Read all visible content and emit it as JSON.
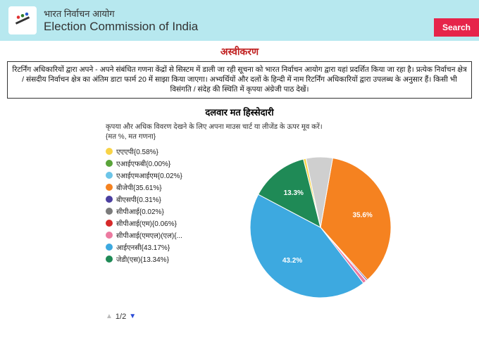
{
  "header": {
    "title_hi": "भारत निर्वाचन आयोग",
    "title_en": "Election Commission of India",
    "search_label": "Search"
  },
  "disclaimer": {
    "heading": "अस्वीकरण",
    "body": "रिटर्निंग अधिकारियों द्वारा अपने - अपने संबंधित गणना केंद्रों से सिस्टम में डाली जा रही सूचना को भारत निर्वाचन आयोग द्वारा यहां प्रदर्शित किया जा रहा है। प्रत्येक निर्वाचन क्षेत्र / संसदीय निर्वाचन क्षेत्र का अंतिम डाटा फार्म 20 में साझा किया जाएगा। अभ्यर्थियों और दलों के हिन्दी में नाम रिटर्निंग अधिकारियों द्वारा उपलब्ध के अनुसार हैं। किसी भी विसंगति / संदेह की स्थिति में कृपया अंग्रेजी पाठ देखें।"
  },
  "chart": {
    "title": "दलवार मत हिस्सेदारी",
    "instructions": "कृपया और अधिक विवरण देखने के लिए अपना माउस चार्ट या लीजेंड के ऊपर मूव करें।",
    "sub_instructions": "{मत %, मत गणना}",
    "type": "pie",
    "background_color": "#ffffff",
    "radius": 100,
    "label_fontsize": 10,
    "legend_fontsize": 10,
    "legend": [
      {
        "name": "एएएपी",
        "pct": "0.58%",
        "color": "#f8d347"
      },
      {
        "name": "एआईएफबी",
        "pct": "0.00%",
        "color": "#5aa43a"
      },
      {
        "name": "एआईएमआईएम",
        "pct": "0.02%",
        "color": "#6cc5e8"
      },
      {
        "name": "बीजेपी",
        "pct": "35.61%",
        "color": "#f58220"
      },
      {
        "name": "बीएसपी",
        "pct": "0.31%",
        "color": "#4b3fa0"
      },
      {
        "name": "सीपीआई",
        "pct": "0.02%",
        "color": "#7b7b7b"
      },
      {
        "name": "सीपीआई(एम)",
        "pct": "0.06%",
        "color": "#d62a2a"
      },
      {
        "name": "सीपीआई(एमएल)(एल)",
        "pct": "",
        "color": "#ec7aa0"
      },
      {
        "name": "आईएनसी",
        "pct": "43.17%",
        "color": "#3da9e0"
      },
      {
        "name": "जेडी(एस)",
        "pct": "13.34%",
        "color": "#1f8a56"
      }
    ],
    "slices": [
      {
        "label": "35.6%",
        "value": 35.61,
        "color": "#f58220",
        "show_label": true
      },
      {
        "label": "",
        "value": 0.31,
        "color": "#4b3fa0",
        "show_label": false
      },
      {
        "label": "",
        "value": 0.02,
        "color": "#7b7b7b",
        "show_label": false
      },
      {
        "label": "",
        "value": 0.06,
        "color": "#d62a2a",
        "show_label": false
      },
      {
        "label": "",
        "value": 0.8,
        "color": "#ec7aa0",
        "show_label": false
      },
      {
        "label": "43.2%",
        "value": 43.17,
        "color": "#3da9e0",
        "show_label": true
      },
      {
        "label": "13.3%",
        "value": 13.34,
        "color": "#1f8a56",
        "show_label": true
      },
      {
        "label": "",
        "value": 0.58,
        "color": "#f8d347",
        "show_label": false
      },
      {
        "label": "",
        "value": 0.02,
        "color": "#6cc5e8",
        "show_label": false
      },
      {
        "label": "",
        "value": 6.09,
        "color": "#cfcfcf",
        "show_label": false
      }
    ],
    "start_angle_deg": -80,
    "pager": {
      "current": "1/2"
    }
  }
}
